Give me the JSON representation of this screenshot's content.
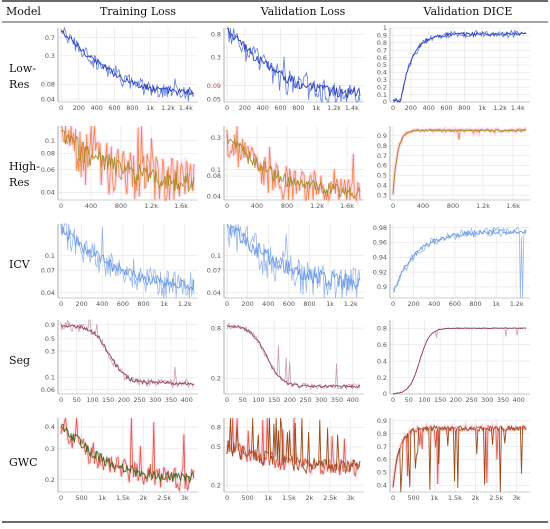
{
  "header": {
    "model": "Model",
    "columns": [
      "Training Loss",
      "Validation Loss",
      "Validation DICE"
    ]
  },
  "rows": [
    {
      "label_lines": [
        "Low-",
        "Res"
      ]
    },
    {
      "label_lines": [
        "High-",
        "Res"
      ]
    },
    {
      "label_lines": [
        "ICV"
      ]
    },
    {
      "label_lines": [
        "Seg"
      ]
    },
    {
      "label_lines": [
        "GWC"
      ]
    }
  ],
  "colors": {
    "grid": "#e3e3e3",
    "axis": "#9a9a9a",
    "smooth_dark": "#2b3fb5",
    "raw_blue": "#4f6fe0",
    "raw_orange": "#ee7b33",
    "raw_red": "#d94a30",
    "smooth_olive": "#a68b2c",
    "smooth_light_blue": "#6d9ae6",
    "smooth_maroon": "#93435f",
    "smooth_green": "#3d6a1c",
    "smooth_brown": "#9c4b1a",
    "highlight_pink": "#f7c5dc"
  },
  "chart_data": [
    {
      "id": "lowres-train",
      "type": "line",
      "scale": "log",
      "xticks": [
        "0",
        "200",
        "400",
        "600",
        "800",
        "1k",
        "1.2k",
        "1.4k"
      ],
      "xmax": 1500,
      "yticks": [
        "0.7",
        "0.3",
        "0.08",
        "0.04"
      ],
      "yvals": [
        0.7,
        0.3,
        0.08,
        0.04
      ],
      "ylim": [
        0.035,
        1.1
      ],
      "style": "lowres",
      "shape": "decay",
      "start": 0.95,
      "end": 0.052,
      "rate": 6,
      "noise": 0.22,
      "plateau": 0
    },
    {
      "id": "lowres-val",
      "type": "line",
      "scale": "log",
      "xticks": [
        "0",
        "200",
        "400",
        "600",
        "800",
        "1k",
        "1.2k",
        "1.4k"
      ],
      "xmax": 1500,
      "yticks": [
        "0.8",
        "0.3",
        "0.09",
        "0.05"
      ],
      "yvals": [
        0.8,
        0.3,
        0.09,
        0.05
      ],
      "red_tick_index": 2,
      "ylim": [
        0.045,
        1.05
      ],
      "style": "lowres",
      "shape": "decay",
      "start": 0.95,
      "end": 0.065,
      "rate": 6,
      "noise": 0.32,
      "plateau": 0
    },
    {
      "id": "lowres-dice",
      "type": "line",
      "scale": "linear",
      "xticks": [
        "0",
        "200",
        "400",
        "600",
        "800",
        "1k",
        "1.2k",
        "1.4k"
      ],
      "xmax": 1500,
      "yticks": [
        "1",
        "0.9",
        "0.8",
        "0.7",
        "0.6",
        "0.5",
        "0.4",
        "0.3",
        "0.2",
        "0.1",
        "0"
      ],
      "yvals": [
        1,
        0.9,
        0.8,
        0.7,
        0.6,
        0.5,
        0.4,
        0.3,
        0.2,
        0.1,
        0
      ],
      "ylim": [
        0,
        1
      ],
      "style": "lowres",
      "shape": "rise",
      "start": 0.02,
      "end": 0.92,
      "rate": 12,
      "noise": 0.03,
      "plateau": 0.06
    },
    {
      "id": "highres-train",
      "type": "line",
      "scale": "log",
      "xticks": [
        "0",
        "400",
        "800",
        "1.2k",
        "1.6k"
      ],
      "xmax": 1800,
      "yticks": [
        "0.1",
        "0.08",
        "0.06",
        "0.04"
      ],
      "yvals": [
        0.1,
        0.08,
        0.06,
        0.04
      ],
      "ylim": [
        0.035,
        0.13
      ],
      "style": "highres",
      "shape": "decay",
      "start": 0.11,
      "end": 0.045,
      "rate": 3,
      "noise": 0.28,
      "plateau": 0
    },
    {
      "id": "highres-val",
      "type": "line",
      "scale": "log",
      "xticks": [
        "0",
        "400",
        "800",
        "1.2k",
        "1.6k"
      ],
      "xmax": 1800,
      "yticks": [
        "0.3",
        "0.1",
        "0.08",
        "0.04"
      ],
      "yvals": [
        0.3,
        0.1,
        0.08,
        0.04
      ],
      "ylim": [
        0.035,
        0.45
      ],
      "style": "highres",
      "shape": "decay",
      "start": 0.3,
      "end": 0.045,
      "rate": 5,
      "noise": 0.35,
      "plateau": 0
    },
    {
      "id": "highres-dice",
      "type": "line",
      "scale": "linear",
      "xticks": [
        "0",
        "400",
        "800",
        "1.2k",
        "1.6k"
      ],
      "xmax": 1800,
      "yticks": [
        "0.9",
        "0.8",
        "0.7",
        "0.6",
        "0.5",
        "0.4",
        "0.3"
      ],
      "yvals": [
        0.9,
        0.8,
        0.7,
        0.6,
        0.5,
        0.4,
        0.3
      ],
      "ylim": [
        0.25,
        1.0
      ],
      "style": "highres",
      "shape": "rise",
      "start": 0.3,
      "end": 0.955,
      "rate": 30,
      "noise": 0.01,
      "plateau": 0
    },
    {
      "id": "icv-train",
      "type": "line",
      "scale": "log",
      "xticks": [
        "0",
        "200",
        "400",
        "600",
        "800",
        "1k",
        "1.2k"
      ],
      "xmax": 1300,
      "yticks": [
        "0.1",
        "0.07",
        "0.04"
      ],
      "yvals": [
        0.1,
        0.07,
        0.04
      ],
      "ylim": [
        0.035,
        0.22
      ],
      "style": "icv",
      "shape": "decay",
      "start": 0.2,
      "end": 0.045,
      "rate": 4,
      "noise": 0.22,
      "plateau": 0
    },
    {
      "id": "icv-val",
      "type": "line",
      "scale": "log",
      "xticks": [
        "0",
        "200",
        "400",
        "600",
        "800",
        "1k",
        "1.2k"
      ],
      "xmax": 1300,
      "yticks": [
        "0.1",
        "0.07",
        "0.04"
      ],
      "yvals": [
        0.1,
        0.07,
        0.04
      ],
      "ylim": [
        0.035,
        0.22
      ],
      "style": "icv",
      "shape": "decay",
      "start": 0.22,
      "end": 0.048,
      "rate": 4,
      "noise": 0.28,
      "plateau": 0
    },
    {
      "id": "icv-dice",
      "type": "line",
      "scale": "linear",
      "xticks": [
        "0",
        "200",
        "400",
        "600",
        "800",
        "1k",
        "1.2k"
      ],
      "xmax": 1300,
      "yticks": [
        "0.98",
        "0.96",
        "0.94",
        "0.92",
        "0.9"
      ],
      "yvals": [
        0.98,
        0.96,
        0.94,
        0.92,
        0.9
      ],
      "ylim": [
        0.885,
        0.985
      ],
      "style": "icv",
      "shape": "rise",
      "start": 0.89,
      "end": 0.975,
      "rate": 6,
      "noise": 0.004,
      "plateau": 0
    },
    {
      "id": "seg-train",
      "type": "line",
      "scale": "log",
      "xticks": [
        "0",
        "50",
        "100",
        "150",
        "200",
        "250",
        "300",
        "350",
        "400"
      ],
      "xmax": 420,
      "yticks": [
        "0.9",
        "0.5",
        "0.3",
        "0.1",
        "0.06"
      ],
      "yvals": [
        0.9,
        0.5,
        0.3,
        0.1,
        0.06
      ],
      "ylim": [
        0.05,
        1.1
      ],
      "style": "seg",
      "shape": "sigmoid",
      "start": 0.85,
      "end": 0.08,
      "rate": 0.3,
      "noise": 0.12,
      "plateau": 0
    },
    {
      "id": "seg-val",
      "type": "line",
      "scale": "log",
      "xticks": [
        "0",
        "50",
        "100",
        "150",
        "200",
        "250",
        "300",
        "350",
        "400"
      ],
      "xmax": 420,
      "yticks": [
        "0.8",
        "0.2"
      ],
      "yvals": [
        0.8,
        0.2
      ],
      "ylim": [
        0.13,
        1.0
      ],
      "style": "seg",
      "shape": "sigmoid",
      "start": 0.85,
      "end": 0.16,
      "rate": 0.25,
      "noise": 0.05,
      "plateau": 0
    },
    {
      "id": "seg-dice",
      "type": "line",
      "scale": "linear",
      "xticks": [
        "0",
        "50",
        "100",
        "150",
        "200",
        "250",
        "300",
        "350",
        "400"
      ],
      "xmax": 420,
      "yticks": [
        "0.8",
        "0.6",
        "0.4",
        "0.2",
        "0"
      ],
      "yvals": [
        0.8,
        0.6,
        0.4,
        0.2,
        0
      ],
      "ylim": [
        0,
        0.9
      ],
      "style": "seg",
      "shape": "rise-sig",
      "start": 0.0,
      "end": 0.8,
      "rate": 0.2,
      "noise": 0.005,
      "plateau": 0
    },
    {
      "id": "gwc-train",
      "type": "line",
      "scale": "log",
      "xticks": [
        "0",
        "500",
        "1k",
        "1.5k",
        "2k",
        "2.5k",
        "3k"
      ],
      "xmax": 3200,
      "yticks": [
        "0.4",
        "0.3",
        "0.2"
      ],
      "yvals": [
        0.4,
        0.3,
        0.2
      ],
      "ylim": [
        0.17,
        0.45
      ],
      "style": "gwc",
      "shape": "decay",
      "start": 0.42,
      "end": 0.2,
      "rate": 4,
      "noise": 0.1,
      "plateau": 0
    },
    {
      "id": "gwc-val",
      "type": "line",
      "scale": "log",
      "xticks": [
        "0",
        "500",
        "1k",
        "1.5k",
        "2k",
        "2.5k",
        "3k"
      ],
      "xmax": 3200,
      "yticks": [
        "0.8",
        "0.5",
        "0.2"
      ],
      "yvals": [
        0.8,
        0.5,
        0.2
      ],
      "ylim": [
        0.17,
        1.0
      ],
      "style": "gwc",
      "shape": "spiky-loss",
      "start": 0.5,
      "end": 0.3,
      "rate": 3,
      "noise": 0.2,
      "plateau": 0
    },
    {
      "id": "gwc-dice",
      "type": "line",
      "scale": "linear",
      "xticks": [
        "0",
        "500",
        "1k",
        "1.5k",
        "2k",
        "2.5k",
        "3k"
      ],
      "xmax": 3200,
      "yticks": [
        "0.9",
        "0.8",
        "0.7",
        "0.6",
        "0.5",
        "0.4"
      ],
      "yvals": [
        0.9,
        0.8,
        0.7,
        0.6,
        0.5,
        0.4
      ],
      "ylim": [
        0.35,
        0.92
      ],
      "style": "gwc",
      "shape": "spiky-dice",
      "start": 0.4,
      "end": 0.84,
      "rate": 20,
      "noise": 0.01,
      "plateau": 0
    }
  ]
}
